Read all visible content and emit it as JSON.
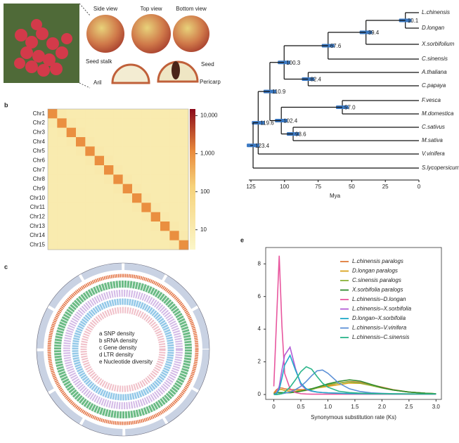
{
  "figure": {
    "panel_a": {
      "labels": [
        "Side view",
        "Top view",
        "Bottom view",
        "Seed stalk",
        "Aril",
        "Seed",
        "Pericarp"
      ]
    },
    "panel_labels": [
      "b",
      "c",
      "e"
    ],
    "circos_legend": [
      "a SNP density",
      "b sRNA density",
      "c Gene density",
      "d LTR density",
      "e Nucleotide diversity"
    ]
  },
  "chart_data": [
    {
      "type": "tree",
      "xlabel": "Mya",
      "xlim": [
        135,
        0
      ],
      "xticks": [
        125,
        100,
        75,
        50,
        25,
        0
      ],
      "tree": {
        "age": 123.4,
        "children": [
          {
            "age": 119.6,
            "children": [
              {
                "age": 110.9,
                "children": [
                  {
                    "age": 100.3,
                    "children": [
                      {
                        "age": 67.6,
                        "children": [
                          {
                            "age": 39.4,
                            "children": [
                              {
                                "age": 10.1,
                                "children": [
                                  {
                                    "name": "L.chinensis"
                                  },
                                  {
                                    "name": "D.longan"
                                  }
                                ]
                              },
                              {
                                "name": "X.sorbifolium"
                              }
                            ]
                          },
                          {
                            "name": "C.sinensis"
                          }
                        ]
                      },
                      {
                        "age": 82.4,
                        "children": [
                          {
                            "name": "A.thaliana"
                          },
                          {
                            "name": "C.papaya"
                          }
                        ]
                      }
                    ]
                  },
                  {
                    "age": 102.4,
                    "children": [
                      {
                        "age": {
                          "value": 57,
                          "label": "57.0"
                        },
                        "children": [
                          {
                            "name": "F.vesca"
                          },
                          {
                            "name": "M.domestica"
                          }
                        ]
                      },
                      {
                        "age": 93.6,
                        "children": [
                          {
                            "name": "C.sativus"
                          },
                          {
                            "name": "M.sativa"
                          }
                        ]
                      }
                    ]
                  }
                ]
              },
              {
                "name": "V.vinifera"
              }
            ]
          },
          {
            "name": "S.lycopersicum"
          }
        ]
      }
    },
    {
      "type": "heatmap",
      "categories": [
        "Chr1",
        "Chr2",
        "Chr3",
        "Chr4",
        "Chr5",
        "Chr6",
        "Chr7",
        "Chr8",
        "Chr9",
        "Chr10",
        "Chr11",
        "Chr12",
        "Chr13",
        "Chr14",
        "Chr15"
      ],
      "log_scale": true,
      "colorbar_lim": [
        3,
        15000
      ],
      "colorbar_ticks": [
        {
          "value": 10000,
          "label": "10,000"
        },
        {
          "value": 1000,
          "label": "1,000"
        },
        100,
        10
      ],
      "values": [
        [
          1000,
          12,
          10,
          10,
          10,
          10,
          10,
          10,
          10,
          10,
          10,
          10,
          10,
          10,
          10
        ],
        [
          12,
          1000,
          12,
          10,
          10,
          10,
          10,
          10,
          10,
          10,
          10,
          10,
          10,
          10,
          10
        ],
        [
          10,
          12,
          1000,
          12,
          10,
          10,
          10,
          10,
          10,
          10,
          10,
          10,
          10,
          10,
          10
        ],
        [
          10,
          10,
          12,
          1000,
          12,
          10,
          10,
          10,
          10,
          10,
          10,
          10,
          10,
          10,
          10
        ],
        [
          10,
          10,
          10,
          12,
          1000,
          12,
          10,
          10,
          10,
          10,
          10,
          10,
          10,
          10,
          10
        ],
        [
          10,
          10,
          10,
          10,
          12,
          1000,
          12,
          10,
          10,
          10,
          10,
          10,
          10,
          10,
          10
        ],
        [
          10,
          10,
          10,
          10,
          10,
          12,
          1000,
          12,
          10,
          10,
          10,
          10,
          10,
          10,
          10
        ],
        [
          10,
          10,
          10,
          10,
          10,
          10,
          12,
          1000,
          12,
          10,
          10,
          10,
          10,
          10,
          10
        ],
        [
          10,
          10,
          10,
          10,
          10,
          10,
          10,
          12,
          1000,
          12,
          10,
          10,
          10,
          10,
          10
        ],
        [
          10,
          10,
          10,
          10,
          10,
          10,
          10,
          10,
          12,
          1000,
          12,
          10,
          10,
          10,
          10
        ],
        [
          10,
          10,
          10,
          10,
          10,
          10,
          10,
          10,
          10,
          12,
          1000,
          12,
          10,
          10,
          10
        ],
        [
          10,
          10,
          10,
          10,
          10,
          10,
          10,
          10,
          10,
          10,
          12,
          1000,
          12,
          10,
          10
        ],
        [
          10,
          10,
          10,
          10,
          10,
          10,
          10,
          10,
          10,
          10,
          10,
          12,
          1000,
          12,
          10
        ],
        [
          10,
          10,
          10,
          10,
          10,
          10,
          10,
          10,
          10,
          10,
          10,
          10,
          12,
          1000,
          12
        ],
        [
          10,
          10,
          10,
          10,
          10,
          10,
          10,
          10,
          10,
          10,
          10,
          10,
          10,
          12,
          1000
        ]
      ]
    },
    {
      "type": "line",
      "xlabel": "Synonymous substitution rate (Ks)",
      "x": [
        0,
        0.05,
        0.1,
        0.15,
        0.2,
        0.3,
        0.4,
        0.5,
        0.6,
        0.7,
        0.8,
        0.9,
        1.0,
        1.2,
        1.4,
        1.6,
        1.8,
        2.0,
        2.2,
        2.5,
        2.8,
        3.0
      ],
      "xlim": [
        -0.15,
        3.1
      ],
      "ylim": [
        -0.3,
        9
      ],
      "xticks": [
        0,
        0.5,
        {
          "value": 1,
          "label": "1.0"
        },
        1.5,
        {
          "value": 2,
          "label": "2.0"
        },
        2.5,
        {
          "value": 3,
          "label": "3.0"
        }
      ],
      "yticks": [
        0,
        2,
        4,
        6,
        8
      ],
      "series": [
        {
          "name": "L.chinensis paralogs",
          "color": "#e07b39",
          "values": [
            0.1,
            0.3,
            0.4,
            0.4,
            0.35,
            0.3,
            0.3,
            0.3,
            0.3,
            0.35,
            0.4,
            0.5,
            0.55,
            0.7,
            0.8,
            0.75,
            0.6,
            0.45,
            0.3,
            0.15,
            0.08,
            0.05
          ]
        },
        {
          "name": "D.longan paralogs",
          "color": "#d9a21b",
          "values": [
            0.05,
            0.2,
            0.3,
            0.3,
            0.25,
            0.2,
            0.2,
            0.25,
            0.3,
            0.35,
            0.4,
            0.45,
            0.5,
            0.6,
            0.7,
            0.68,
            0.55,
            0.4,
            0.28,
            0.15,
            0.08,
            0.05
          ]
        },
        {
          "name": "C.sinensis paralogs",
          "color": "#8ab33a",
          "values": [
            0.05,
            0.1,
            0.1,
            0.1,
            0.1,
            0.1,
            0.15,
            0.2,
            0.25,
            0.3,
            0.4,
            0.5,
            0.6,
            0.7,
            0.78,
            0.7,
            0.55,
            0.4,
            0.28,
            0.15,
            0.08,
            0.05
          ]
        },
        {
          "name": "X.sorbifolia paralogs",
          "color": "#2e8b2e",
          "values": [
            0.05,
            0.1,
            0.12,
            0.12,
            0.12,
            0.12,
            0.15,
            0.2,
            0.28,
            0.35,
            0.45,
            0.55,
            0.65,
            0.8,
            0.9,
            0.82,
            0.62,
            0.42,
            0.28,
            0.15,
            0.08,
            0.05
          ]
        },
        {
          "name": "L.chinensis–D.longan",
          "color": "#e8569e",
          "values": [
            0.5,
            4.5,
            8.5,
            4.2,
            1.3,
            0.35,
            0.12,
            0.05,
            0.03,
            0.02,
            0.02,
            0.02,
            0.02,
            0.02,
            0.02,
            0.02,
            0.02,
            0.02,
            0.02,
            0.02,
            0.02,
            0.02
          ]
        },
        {
          "name": "L.chinensis–X.sorbifolia",
          "color": "#b35cd6",
          "values": [
            0,
            0.1,
            0.5,
            1.5,
            2.4,
            2.9,
            1.6,
            0.6,
            0.3,
            0.2,
            0.15,
            0.12,
            0.1,
            0.08,
            0.06,
            0.05,
            0.04,
            0.04,
            0.03,
            0.03,
            0.03,
            0.03
          ]
        },
        {
          "name": "D.longan–X.sorbifolia",
          "color": "#1fa9c9",
          "values": [
            0,
            0.05,
            0.3,
            1.0,
            1.8,
            2.4,
            1.5,
            0.7,
            0.35,
            0.22,
            0.15,
            0.12,
            0.1,
            0.08,
            0.06,
            0.05,
            0.04,
            0.04,
            0.03,
            0.03,
            0.03,
            0.03
          ]
        },
        {
          "name": "L.chinensis–V.vinifera",
          "color": "#5b8fd6",
          "values": [
            0,
            0,
            0.02,
            0.05,
            0.08,
            0.15,
            0.3,
            0.5,
            0.8,
            1.15,
            1.45,
            1.5,
            1.3,
            0.7,
            0.35,
            0.18,
            0.1,
            0.07,
            0.05,
            0.04,
            0.03,
            0.03
          ]
        },
        {
          "name": "L.chinensis–C.sinensis",
          "color": "#2bb58a",
          "values": [
            0,
            0,
            0.02,
            0.05,
            0.15,
            0.45,
            0.9,
            1.4,
            1.7,
            1.55,
            1.1,
            0.7,
            0.45,
            0.2,
            0.12,
            0.08,
            0.06,
            0.05,
            0.04,
            0.03,
            0.03,
            0.03
          ]
        }
      ]
    }
  ]
}
